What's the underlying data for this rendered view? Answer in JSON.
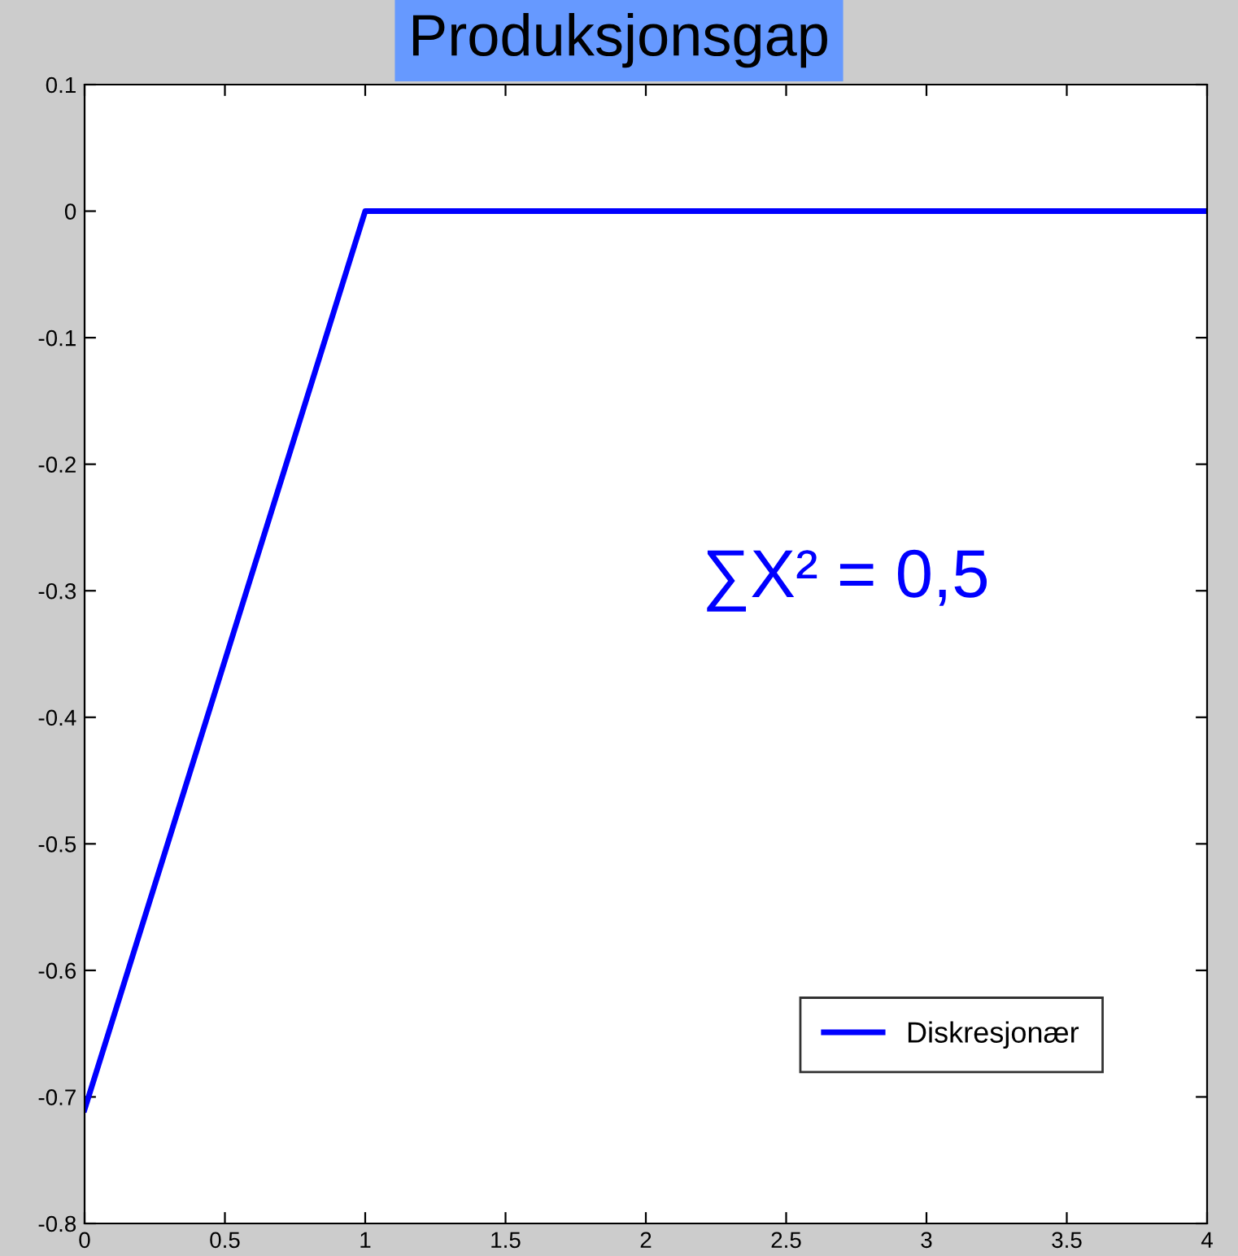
{
  "chart_data": {
    "type": "line",
    "title": "Produksjonsgap",
    "x": [
      0,
      1,
      4
    ],
    "series": [
      {
        "name": "Diskresjonær",
        "color": "#0000ff",
        "values": [
          -0.71,
          0,
          0
        ]
      }
    ],
    "annotations": [
      "∑X² = 0,5"
    ],
    "xlim": [
      0,
      4
    ],
    "xticks": [
      0,
      0.5,
      1,
      1.5,
      2,
      2.5,
      3,
      3.5,
      4
    ],
    "ylim": [
      -0.8,
      0.1
    ],
    "yticks": [
      -0.8,
      -0.7,
      -0.6,
      -0.5,
      -0.4,
      -0.3,
      -0.2,
      -0.1,
      0,
      0.1
    ],
    "grid": false,
    "legend": "bottom right",
    "line_style": "solid",
    "marker": "none"
  }
}
